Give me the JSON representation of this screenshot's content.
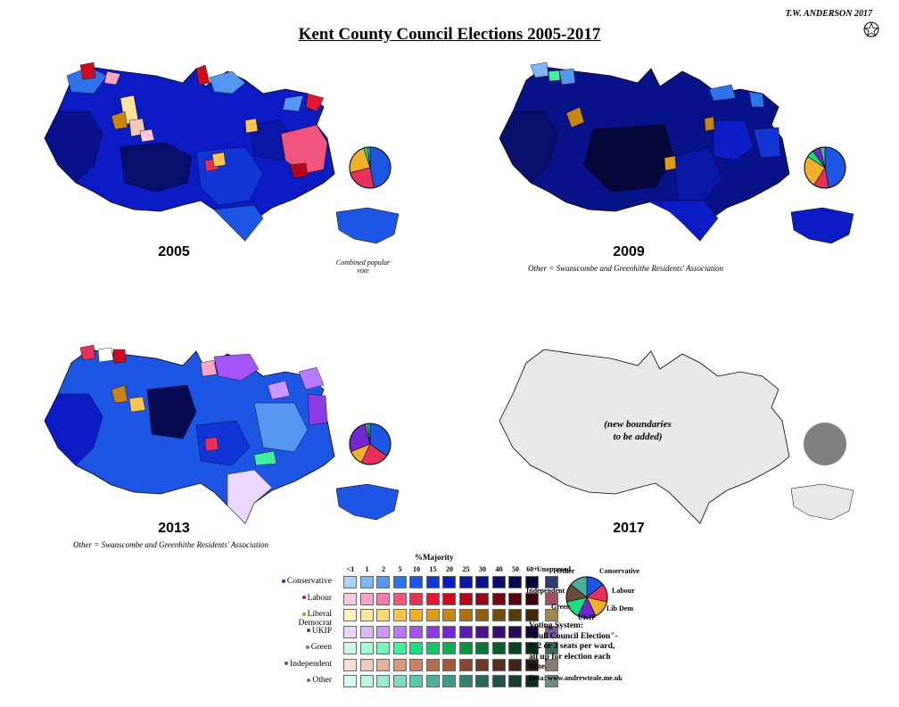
{
  "header": {
    "title": "Kent County Council Elections 2005-2017",
    "author": "T.W. ANDERSON 2017"
  },
  "maps": {
    "y2005": {
      "year": "2005",
      "note": "Combined popular vote"
    },
    "y2009": {
      "year": "2009",
      "note": "Other = Swanscombe and Greenhithe Residents' Association"
    },
    "y2013": {
      "year": "2013",
      "note": "Other = Swanscombe and Greenhithe Residents' Association"
    },
    "y2017": {
      "year": "2017",
      "placeholder_line1": "(new boundaries",
      "placeholder_line2": "to be added)"
    }
  },
  "legend": {
    "title": "%Majority",
    "columns": [
      "<1",
      "1",
      "2",
      "5",
      "10",
      "15",
      "20",
      "25",
      "30",
      "40",
      "50",
      "60+",
      "Unopposed"
    ],
    "parties": [
      {
        "name": "Conservative",
        "dot": "#1f3f8f",
        "colors": [
          "#a8d4ff",
          "#7fb6f5",
          "#5596f0",
          "#2f73ea",
          "#1d55e5",
          "#1235d5",
          "#0b1cc4",
          "#0a17a6",
          "#091389",
          "#080f6c",
          "#070b52",
          "#050838",
          "#2f3a7a"
        ]
      },
      {
        "name": "Labour",
        "dot": "#b0203a",
        "colors": [
          "#ffc8de",
          "#ffa3c7",
          "#f97aa8",
          "#f0557e",
          "#e8305a",
          "#e01834",
          "#d00a1d",
          "#b3081a",
          "#950617",
          "#780513",
          "#5c030f",
          "#40020a",
          "#a05060"
        ]
      },
      {
        "name": "Liberal Democrat",
        "dot": "#c08a20",
        "colors": [
          "#fff0c0",
          "#ffe49a",
          "#ffd773",
          "#fbc64b",
          "#f0b02a",
          "#e0981a",
          "#c98511",
          "#ad720e",
          "#915f0b",
          "#754c09",
          "#5a3a07",
          "#402904",
          "#a0884a"
        ]
      },
      {
        "name": "UKIP",
        "dot": "#6a2a9a",
        "colors": [
          "#ecd8ff",
          "#dcb8ff",
          "#cc98ff",
          "#b878ff",
          "#a455f5",
          "#8d3be5",
          "#7526d0",
          "#6118b0",
          "#4e1091",
          "#3c0b72",
          "#2a0755",
          "#1a043a",
          "#7a5a9a"
        ]
      },
      {
        "name": "Green",
        "dot": "#1aa060",
        "colors": [
          "#c8ffe4",
          "#a0ffd0",
          "#70f8b4",
          "#40f09a",
          "#18e07e",
          "#10c866",
          "#0ab050",
          "#089442",
          "#067836",
          "#055e2a",
          "#03451f",
          "#022e14",
          "#3a6a50"
        ]
      },
      {
        "name": "Independent",
        "dot": "#6b4c3a",
        "colors": [
          "#f8e0d4",
          "#f0cab6",
          "#e6b297",
          "#d99a7a",
          "#c98260",
          "#b46c4c",
          "#9e593c",
          "#86482f",
          "#6f3a25",
          "#58301e",
          "#422416",
          "#2e1a10",
          "#8a7a72"
        ]
      },
      {
        "name": "Other",
        "dot": "#3c8a80",
        "colors": [
          "#d4fff4",
          "#b6f4e4",
          "#98e8d4",
          "#7adcc4",
          "#5cc8b0",
          "#4ab09c",
          "#3c9888",
          "#308074",
          "#266a60",
          "#1c544c",
          "#144038",
          "#0c2c26",
          "#708c88"
        ]
      }
    ],
    "voting_system": [
      "Voting System:",
      "\"Full Council Election\"-",
      "1, 2 or 3 seats per ward,",
      "all up for election each",
      "time."
    ],
    "data_source": "Data: www.andrewteale.me.uk",
    "pie_labels": {
      "other": "Other",
      "conservative": "Conservative",
      "independent": "Independent",
      "labour": "Labour",
      "green": "Green",
      "libdem": "Lib Dem",
      "ukip": "UKIP"
    }
  },
  "popular_vote": {
    "y2005": {
      "Conservative": 47,
      "Labour": 24,
      "Liberal Democrat": 24,
      "Green": 3,
      "Other": 2
    },
    "y2009": {
      "Conservative": 47,
      "Labour": 12,
      "Liberal Democrat": 25,
      "Green": 6,
      "UKIP": 6,
      "Other": 4
    },
    "y2013": {
      "Conservative": 35,
      "Labour": 22,
      "Liberal Democrat": 12,
      "UKIP": 27,
      "Green": 2,
      "Other": 2
    }
  },
  "colors": {
    "conservative": "#1d55e5",
    "labour": "#e8305a",
    "libdem": "#f0b02a",
    "ukip": "#7526d0",
    "green": "#18e07e",
    "independent": "#6b4c3a",
    "other": "#4ab09c",
    "gray": "#e8e8e8",
    "pie_gray": "#808080"
  }
}
